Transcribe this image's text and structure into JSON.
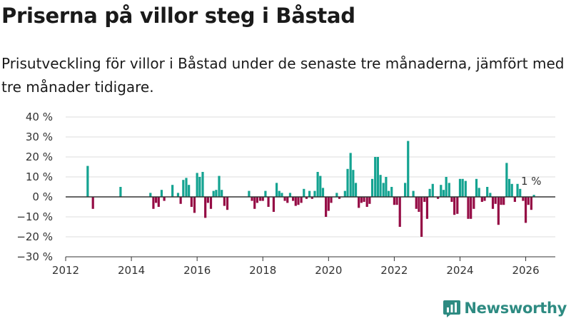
{
  "header": {
    "title": "Priserna på villor steg i Båstad",
    "subtitle": "Prisutveckling för villor i Båstad under de senaste tre månaderna, jämfört med tre månader tidigare."
  },
  "brand": {
    "name": "Newsworthy",
    "color": "#2e8b82"
  },
  "colors": {
    "positive": "#14a391",
    "negative": "#950c45",
    "grid": "#dcdcdc",
    "axis": "#333333"
  },
  "chart_data": {
    "type": "bar",
    "title": "Priserna på villor steg i Båstad",
    "xlabel": "",
    "ylabel": "",
    "ylim": [
      -30,
      40
    ],
    "yticks": [
      -30,
      -20,
      -10,
      0,
      10,
      20,
      30,
      40
    ],
    "ytick_labels": [
      "−30 %",
      "−20 %",
      "−10 %",
      "0 %",
      "10 %",
      "20 %",
      "30 %",
      "40 %"
    ],
    "xlim": [
      2012.0,
      2026.9
    ],
    "xticks": [
      2012,
      2014,
      2016,
      2018,
      2020,
      2022,
      2024,
      2026
    ],
    "xtick_labels": [
      "2012",
      "2014",
      "2016",
      "2018",
      "2020",
      "2022",
      "2024",
      "2026"
    ],
    "grid": true,
    "annotation": {
      "text": "1 %",
      "x": 2026.08,
      "y": 1
    },
    "series": [
      {
        "name": "Prisutveckling",
        "points": [
          [
            2012.67,
            15.5
          ],
          [
            2012.83,
            -6
          ],
          [
            2013.67,
            5
          ],
          [
            2014.58,
            2
          ],
          [
            2014.67,
            -6
          ],
          [
            2014.75,
            -3
          ],
          [
            2014.83,
            -5
          ],
          [
            2014.92,
            3.5
          ],
          [
            2015.0,
            -2
          ],
          [
            2015.25,
            6
          ],
          [
            2015.42,
            2
          ],
          [
            2015.5,
            -3.5
          ],
          [
            2015.58,
            8.5
          ],
          [
            2015.67,
            9.5
          ],
          [
            2015.75,
            6
          ],
          [
            2015.83,
            -5
          ],
          [
            2015.92,
            -8
          ],
          [
            2016.0,
            12
          ],
          [
            2016.08,
            10
          ],
          [
            2016.17,
            12.5
          ],
          [
            2016.25,
            -10.5
          ],
          [
            2016.33,
            -3
          ],
          [
            2016.42,
            -6
          ],
          [
            2016.5,
            3
          ],
          [
            2016.58,
            3.5
          ],
          [
            2016.67,
            10.5
          ],
          [
            2016.75,
            3.5
          ],
          [
            2016.83,
            -4.5
          ],
          [
            2016.92,
            -6.5
          ],
          [
            2017.58,
            3
          ],
          [
            2017.67,
            -2
          ],
          [
            2017.75,
            -6
          ],
          [
            2017.83,
            -3
          ],
          [
            2017.92,
            -2
          ],
          [
            2018.0,
            -2
          ],
          [
            2018.08,
            3
          ],
          [
            2018.17,
            -5
          ],
          [
            2018.33,
            -7.5
          ],
          [
            2018.42,
            7
          ],
          [
            2018.5,
            3
          ],
          [
            2018.58,
            2
          ],
          [
            2018.67,
            -2
          ],
          [
            2018.75,
            -3
          ],
          [
            2018.83,
            2
          ],
          [
            2018.92,
            -2
          ],
          [
            2019.0,
            -4.5
          ],
          [
            2019.08,
            -4
          ],
          [
            2019.17,
            -3
          ],
          [
            2019.25,
            4
          ],
          [
            2019.33,
            -1
          ],
          [
            2019.42,
            3
          ],
          [
            2019.5,
            -1
          ],
          [
            2019.58,
            3
          ],
          [
            2019.67,
            12.5
          ],
          [
            2019.75,
            10.5
          ],
          [
            2019.83,
            4.5
          ],
          [
            2019.92,
            -10
          ],
          [
            2020.0,
            -7
          ],
          [
            2020.08,
            -3
          ],
          [
            2020.25,
            2
          ],
          [
            2020.33,
            -1
          ],
          [
            2020.5,
            3
          ],
          [
            2020.58,
            14
          ],
          [
            2020.67,
            22
          ],
          [
            2020.75,
            13.5
          ],
          [
            2020.83,
            7
          ],
          [
            2020.92,
            -5.5
          ],
          [
            2021.0,
            -3
          ],
          [
            2021.08,
            -2.5
          ],
          [
            2021.17,
            -5
          ],
          [
            2021.25,
            -3.5
          ],
          [
            2021.33,
            9
          ],
          [
            2021.42,
            20
          ],
          [
            2021.5,
            20
          ],
          [
            2021.58,
            11
          ],
          [
            2021.67,
            7
          ],
          [
            2021.75,
            10
          ],
          [
            2021.83,
            3
          ],
          [
            2021.92,
            5
          ],
          [
            2022.0,
            -4
          ],
          [
            2022.08,
            -4
          ],
          [
            2022.17,
            -15
          ],
          [
            2022.33,
            7
          ],
          [
            2022.42,
            28
          ],
          [
            2022.58,
            3
          ],
          [
            2022.67,
            -6
          ],
          [
            2022.75,
            -7.5
          ],
          [
            2022.83,
            -20
          ],
          [
            2022.92,
            -2.5
          ],
          [
            2023.0,
            -11
          ],
          [
            2023.08,
            4
          ],
          [
            2023.17,
            6.5
          ],
          [
            2023.33,
            -1
          ],
          [
            2023.42,
            6
          ],
          [
            2023.5,
            3.5
          ],
          [
            2023.58,
            10
          ],
          [
            2023.67,
            7
          ],
          [
            2023.75,
            -2.5
          ],
          [
            2023.83,
            -9
          ],
          [
            2023.92,
            -8.5
          ],
          [
            2024.0,
            9
          ],
          [
            2024.08,
            9
          ],
          [
            2024.17,
            8
          ],
          [
            2024.25,
            -11
          ],
          [
            2024.33,
            -11
          ],
          [
            2024.42,
            -6
          ],
          [
            2024.5,
            9
          ],
          [
            2024.58,
            4.5
          ],
          [
            2024.67,
            -2.5
          ],
          [
            2024.75,
            -2
          ],
          [
            2024.83,
            5
          ],
          [
            2024.92,
            2
          ],
          [
            2025.0,
            -6
          ],
          [
            2025.08,
            -3.5
          ],
          [
            2025.17,
            -14
          ],
          [
            2025.25,
            -4
          ],
          [
            2025.33,
            -4
          ],
          [
            2025.42,
            17
          ],
          [
            2025.5,
            9
          ],
          [
            2025.58,
            6.5
          ],
          [
            2025.67,
            -2.5
          ],
          [
            2025.75,
            6.5
          ],
          [
            2025.83,
            4
          ],
          [
            2025.92,
            -2
          ],
          [
            2026.0,
            -13
          ],
          [
            2026.08,
            -4
          ],
          [
            2026.17,
            -6.5
          ],
          [
            2026.25,
            1
          ]
        ]
      }
    ]
  }
}
